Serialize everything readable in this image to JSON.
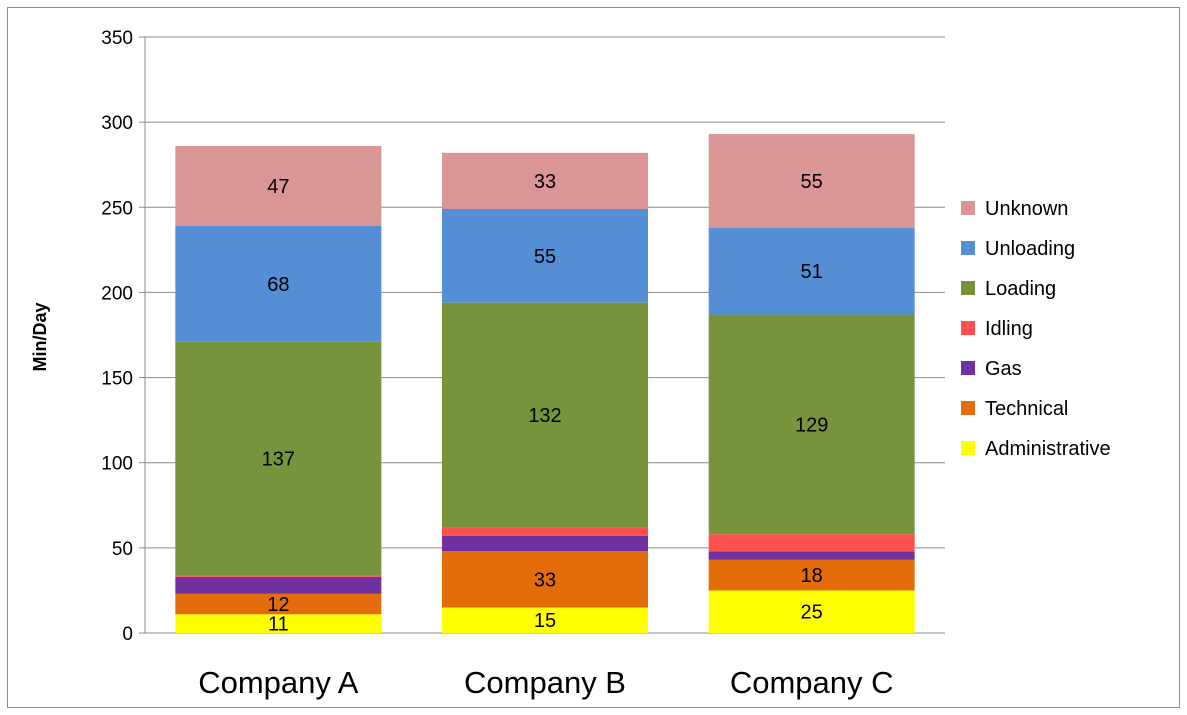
{
  "chart_data": {
    "type": "bar",
    "stacked": true,
    "categories": [
      "Company A",
      "Company B",
      "Company C"
    ],
    "ylabel": "Min/Day",
    "xlabel": "",
    "ylim": [
      0,
      350
    ],
    "yticks": [
      0,
      50,
      100,
      150,
      200,
      250,
      300,
      350
    ],
    "grid": true,
    "legend_position": "right",
    "series": [
      {
        "name": "Administrative",
        "color": "#ffff00",
        "values": [
          11,
          15,
          25
        ],
        "labels": [
          "11",
          "15",
          "25"
        ]
      },
      {
        "name": "Technical",
        "color": "#e46c0a",
        "values": [
          12,
          33,
          18
        ],
        "labels": [
          "12",
          "33",
          "18"
        ]
      },
      {
        "name": "Gas",
        "color": "#7030a0",
        "values": [
          10,
          9,
          5
        ],
        "labels": [
          "",
          "",
          ""
        ]
      },
      {
        "name": "Idling",
        "color": "#ff5050",
        "values": [
          1,
          5,
          10
        ],
        "labels": [
          "",
          "",
          ""
        ]
      },
      {
        "name": "Loading",
        "color": "#77933c",
        "values": [
          137,
          132,
          129
        ],
        "labels": [
          "137",
          "132",
          "129"
        ]
      },
      {
        "name": "Unloading",
        "color": "#558ed5",
        "values": [
          68,
          55,
          51
        ],
        "labels": [
          "68",
          "55",
          "51"
        ]
      },
      {
        "name": "Unknown",
        "color": "#d99694",
        "values": [
          47,
          33,
          55
        ],
        "labels": [
          "47",
          "33",
          "55"
        ]
      }
    ]
  }
}
